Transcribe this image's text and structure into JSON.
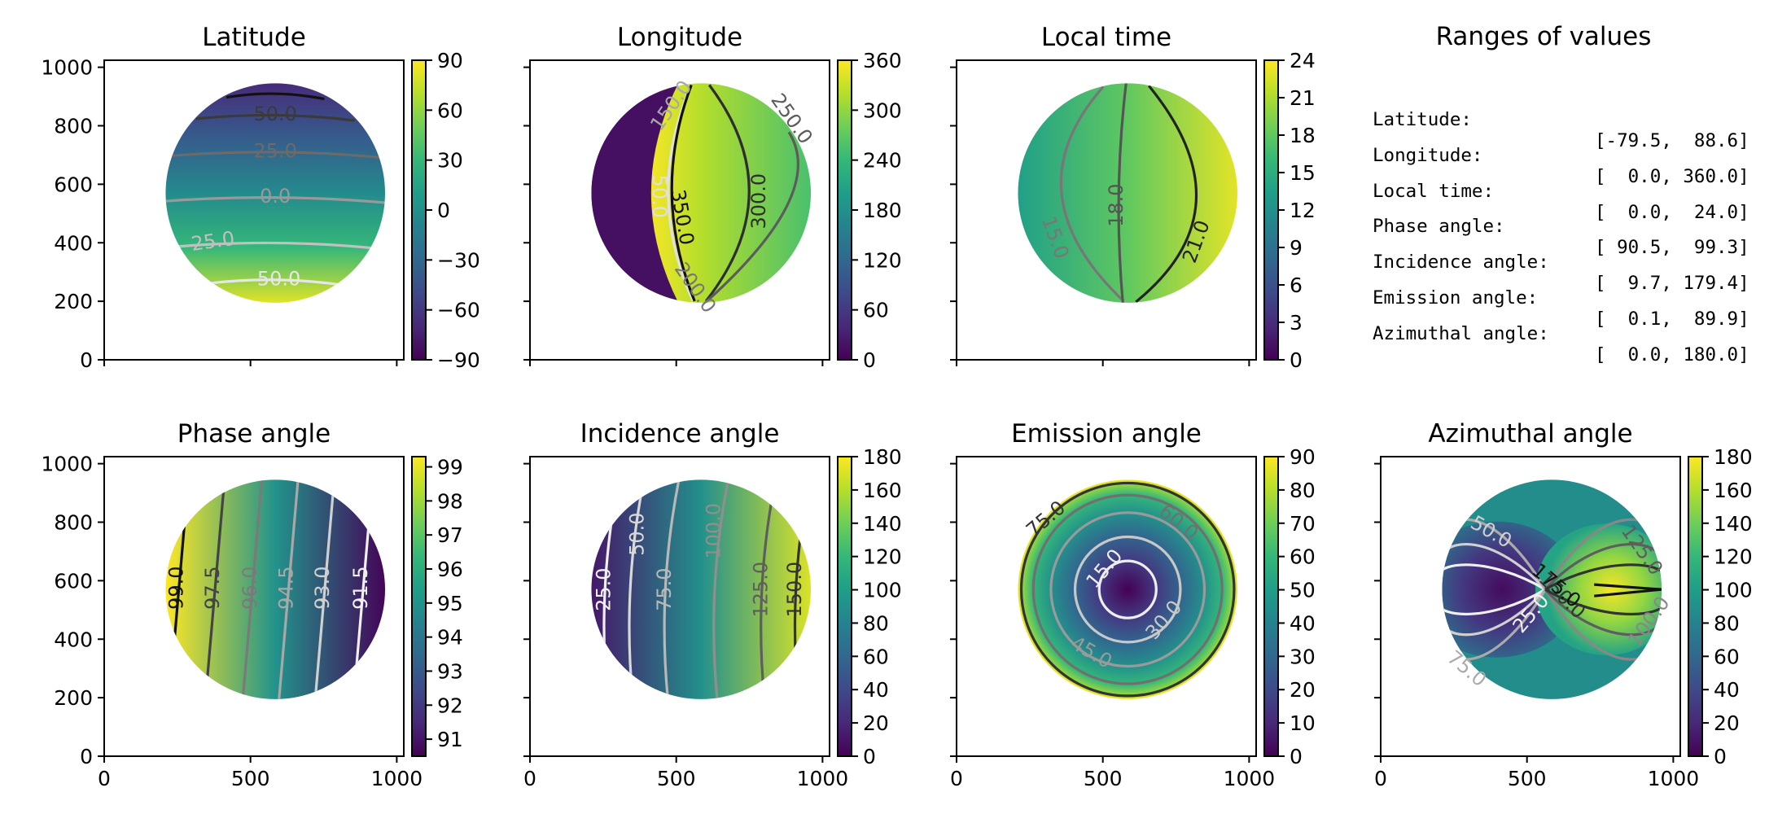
{
  "figure": {
    "ranges_panel": {
      "title": "Ranges of values",
      "rows": [
        {
          "label": "Latitude:",
          "value": "[-79.5,  88.6]"
        },
        {
          "label": "Longitude:",
          "value": "[  0.0, 360.0]"
        },
        {
          "label": "Local time:",
          "value": "[  0.0,  24.0]"
        },
        {
          "label": "Phase angle:",
          "value": "[ 90.5,  99.3]"
        },
        {
          "label": "Incidence angle:",
          "value": "[  9.7, 179.4]"
        },
        {
          "label": "Emission angle:",
          "value": "[  0.1,  89.9]"
        },
        {
          "label": "Azimuthal angle:",
          "value": "[  0.0, 180.0]"
        }
      ]
    }
  },
  "chart_data": [
    {
      "type": "heatmap",
      "title": "Latitude",
      "colormap": "viridis",
      "xlim": [
        0,
        1024
      ],
      "ylim": [
        0,
        1024
      ],
      "xticks": [
        0,
        500,
        1000
      ],
      "yticks": [
        0,
        200,
        400,
        600,
        800,
        1000
      ],
      "show_xtick_labels": false,
      "show_ytick_labels": true,
      "disk": {
        "cx": 585,
        "cy": 570,
        "r": 375
      },
      "clim": [
        -90,
        90
      ],
      "cbar_ticks": [
        90,
        60,
        30,
        0,
        -30,
        -60,
        -90
      ],
      "cbar_labels": [
        "90",
        "60",
        "30",
        "0",
        "−30",
        "−60",
        "−90"
      ],
      "gradient": {
        "direction": "vertical",
        "stops": [
          [
            0,
            "#3e4a89"
          ],
          [
            0.2,
            "#375a8c"
          ],
          [
            0.45,
            "#21918c"
          ],
          [
            0.75,
            "#35b779"
          ],
          [
            1,
            "#bddf26"
          ]
        ]
      },
      "contours": [
        {
          "level": -50.0,
          "label": "-50.0",
          "color": "#e6e6e6"
        },
        {
          "level": -25.0,
          "label": "-25.0",
          "color": "#c0c0c0"
        },
        {
          "level": 0.0,
          "label": "0.0",
          "color": "#999999"
        },
        {
          "level": 25.0,
          "label": "25.0",
          "color": "#6b6b6b"
        },
        {
          "level": 50.0,
          "label": "50.0",
          "color": "#3a3a3a"
        },
        {
          "level": 75.0,
          "label": "",
          "color": "#111111"
        }
      ]
    },
    {
      "type": "heatmap",
      "title": "Longitude",
      "colormap": "viridis",
      "xlim": [
        0,
        1024
      ],
      "ylim": [
        0,
        1024
      ],
      "xticks": [
        0,
        500,
        1000
      ],
      "yticks": [
        0,
        200,
        400,
        600,
        800,
        1000
      ],
      "show_xtick_labels": false,
      "show_ytick_labels": false,
      "disk": {
        "cx": 585,
        "cy": 570,
        "r": 375
      },
      "clim": [
        0,
        360
      ],
      "cbar_ticks": [
        360,
        300,
        240,
        180,
        120,
        60,
        0
      ],
      "cbar_labels": [
        "360",
        "300",
        "240",
        "180",
        "120",
        "60",
        "0"
      ],
      "contours": [
        {
          "level": 50.0,
          "label": "50.0",
          "color": "#e0e0e0"
        },
        {
          "level": 150.0,
          "label": "150.0",
          "color": "#a8a8a8"
        },
        {
          "level": 200.0,
          "label": "200.0",
          "color": "#777777"
        },
        {
          "level": 250.0,
          "label": "250.0",
          "color": "#5c5c5c"
        },
        {
          "level": 300.0,
          "label": "300.0",
          "color": "#2e2e2e"
        },
        {
          "level": 350.0,
          "label": "350.0",
          "color": "#111111"
        }
      ]
    },
    {
      "type": "heatmap",
      "title": "Local time",
      "colormap": "viridis",
      "xlim": [
        0,
        1024
      ],
      "ylim": [
        0,
        1024
      ],
      "xticks": [
        0,
        500,
        1000
      ],
      "yticks": [
        0,
        200,
        400,
        600,
        800,
        1000
      ],
      "show_xtick_labels": false,
      "show_ytick_labels": false,
      "disk": {
        "cx": 585,
        "cy": 570,
        "r": 375
      },
      "clim": [
        0,
        24
      ],
      "cbar_ticks": [
        24,
        21,
        18,
        15,
        12,
        9,
        6,
        3,
        0
      ],
      "cbar_labels": [
        "24",
        "21",
        "18",
        "15",
        "12",
        "9",
        "6",
        "3",
        "0"
      ],
      "contours": [
        {
          "level": 15.0,
          "label": "15.0",
          "color": "#777777"
        },
        {
          "level": 18.0,
          "label": "18.0",
          "color": "#555555"
        },
        {
          "level": 21.0,
          "label": "21.0",
          "color": "#222222"
        }
      ]
    },
    {
      "type": "heatmap",
      "title": "Phase angle",
      "colormap": "viridis",
      "xlim": [
        0,
        1024
      ],
      "ylim": [
        0,
        1024
      ],
      "xticks": [
        0,
        500,
        1000
      ],
      "yticks": [
        0,
        200,
        400,
        600,
        800,
        1000
      ],
      "show_xtick_labels": true,
      "show_ytick_labels": true,
      "disk": {
        "cx": 585,
        "cy": 570,
        "r": 375
      },
      "clim": [
        90.5,
        99.3
      ],
      "cbar_ticks": [
        99,
        98,
        97,
        96,
        95,
        94,
        93,
        92,
        91
      ],
      "cbar_labels": [
        "99",
        "98",
        "97",
        "96",
        "95",
        "94",
        "93",
        "92",
        "91"
      ],
      "contours": [
        {
          "level": 91.5,
          "label": "91.5",
          "color": "#f0f0f0"
        },
        {
          "level": 93.0,
          "label": "93.0",
          "color": "#d0d0d0"
        },
        {
          "level": 94.5,
          "label": "94.5",
          "color": "#a8a8a8"
        },
        {
          "level": 96.0,
          "label": "96.0",
          "color": "#7a7a7a"
        },
        {
          "level": 97.5,
          "label": "97.5",
          "color": "#444444"
        },
        {
          "level": 99.0,
          "label": "99.0",
          "color": "#111111"
        }
      ]
    },
    {
      "type": "heatmap",
      "title": "Incidence angle",
      "colormap": "viridis",
      "xlim": [
        0,
        1024
      ],
      "ylim": [
        0,
        1024
      ],
      "xticks": [
        0,
        500,
        1000
      ],
      "yticks": [
        0,
        200,
        400,
        600,
        800,
        1000
      ],
      "show_xtick_labels": true,
      "show_ytick_labels": false,
      "disk": {
        "cx": 585,
        "cy": 570,
        "r": 375
      },
      "clim": [
        0,
        180
      ],
      "cbar_ticks": [
        180,
        160,
        140,
        120,
        100,
        80,
        60,
        40,
        20,
        0
      ],
      "cbar_labels": [
        "180",
        "160",
        "140",
        "120",
        "100",
        "80",
        "60",
        "40",
        "20",
        "0"
      ],
      "contours": [
        {
          "level": 25.0,
          "label": "25.0",
          "color": "#f0f0f0"
        },
        {
          "level": 50.0,
          "label": "50.0",
          "color": "#d8d8d8"
        },
        {
          "level": 75.0,
          "label": "75.0",
          "color": "#b8b8b8"
        },
        {
          "level": 100.0,
          "label": "100.0",
          "color": "#8f8f8f"
        },
        {
          "level": 125.0,
          "label": "125.0",
          "color": "#5e5e5e"
        },
        {
          "level": 150.0,
          "label": "150.0",
          "color": "#333333"
        },
        {
          "level": 175.0,
          "label": "",
          "color": "#111111"
        }
      ]
    },
    {
      "type": "heatmap",
      "title": "Emission angle",
      "colormap": "viridis",
      "xlim": [
        0,
        1024
      ],
      "ylim": [
        0,
        1024
      ],
      "xticks": [
        0,
        500,
        1000
      ],
      "yticks": [
        0,
        200,
        400,
        600,
        800,
        1000
      ],
      "show_xtick_labels": true,
      "show_ytick_labels": false,
      "disk": {
        "cx": 585,
        "cy": 570,
        "r": 375
      },
      "clim": [
        0,
        90
      ],
      "cbar_ticks": [
        90,
        80,
        70,
        60,
        50,
        40,
        30,
        20,
        10,
        0
      ],
      "cbar_labels": [
        "90",
        "80",
        "70",
        "60",
        "50",
        "40",
        "30",
        "20",
        "10",
        "0"
      ],
      "contours": [
        {
          "level": 15.0,
          "label": "15.0",
          "color": "#eeeeee"
        },
        {
          "level": 30.0,
          "label": "30.0",
          "color": "#c8c8c8"
        },
        {
          "level": 45.0,
          "label": "45.0",
          "color": "#9a9a9a"
        },
        {
          "level": 60.0,
          "label": "60.0",
          "color": "#707070"
        },
        {
          "level": 75.0,
          "label": "75.0",
          "color": "#333333"
        }
      ]
    },
    {
      "type": "heatmap",
      "title": "Azimuthal angle",
      "colormap": "viridis",
      "xlim": [
        0,
        1024
      ],
      "ylim": [
        0,
        1024
      ],
      "xticks": [
        0,
        500,
        1000
      ],
      "yticks": [
        0,
        200,
        400,
        600,
        800,
        1000
      ],
      "show_xtick_labels": true,
      "show_ytick_labels": false,
      "disk": {
        "cx": 585,
        "cy": 570,
        "r": 375
      },
      "clim": [
        0,
        180
      ],
      "cbar_ticks": [
        180,
        160,
        140,
        120,
        100,
        80,
        60,
        40,
        20,
        0
      ],
      "cbar_labels": [
        "180",
        "160",
        "140",
        "120",
        "100",
        "80",
        "60",
        "40",
        "20",
        "0"
      ],
      "contours": [
        {
          "level": 25.0,
          "label": "25.0",
          "color": "#f0f0f0"
        },
        {
          "level": 50.0,
          "label": "50.0",
          "color": "#d0d0d0"
        },
        {
          "level": 75.0,
          "label": "75.0",
          "color": "#aaaaaa"
        },
        {
          "level": 100.0,
          "label": "100.0",
          "color": "#888888"
        },
        {
          "level": 125.0,
          "label": "125.0",
          "color": "#5e5e5e"
        },
        {
          "level": 150.0,
          "label": "150.0",
          "color": "#333333"
        },
        {
          "level": 175.0,
          "label": "175.0",
          "color": "#111111"
        }
      ]
    }
  ]
}
